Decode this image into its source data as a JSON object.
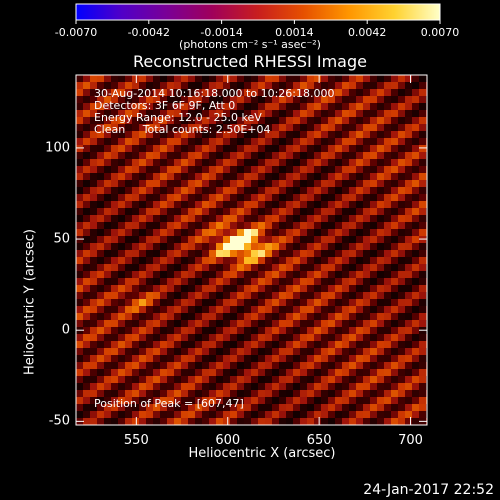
{
  "colorbar": {
    "tick_labels": [
      "-0.0070",
      "-0.0042",
      "-0.0014",
      "0.0014",
      "0.0042",
      "0.0070"
    ],
    "units": "(photons cm⁻² s⁻¹ asec⁻²)",
    "colormap": [
      "#0000ff",
      "#5000c8",
      "#7a0096",
      "#a0005a",
      "#c81e1e",
      "#e65000",
      "#ff9600",
      "#ffd230",
      "#ffffc8"
    ]
  },
  "title": "Reconstructed RHESSI Image",
  "info": {
    "time_range": "30-Aug-2014 10:16:18.000 to 10:26:18.000",
    "detectors": "Detectors: 3F 6F 9F, Att 0",
    "energy_range": "Energy Range: 12.0 - 25.0 keV",
    "method_counts": "Clean     Total counts: 2.50E+04"
  },
  "peak_label": "Position of Peak = [607,47]",
  "axes": {
    "x_label": "Heliocentric X (arcsec)",
    "y_label": "Heliocentric Y (arcsec)",
    "x_ticks": [
      "550",
      "600",
      "650",
      "700"
    ],
    "y_ticks": [
      "100",
      "50",
      "0",
      "-50"
    ],
    "x_range": [
      517,
      709
    ],
    "y_range": [
      -52,
      140
    ]
  },
  "source": {
    "peak_x": 607,
    "peak_y": 47
  },
  "footer_date": "24-Jan-2017 22:52"
}
